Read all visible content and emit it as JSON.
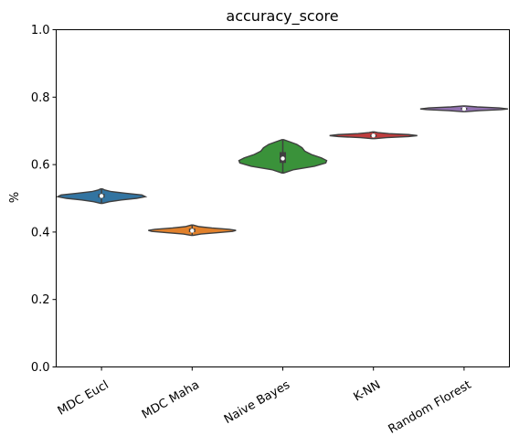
{
  "chart_data": {
    "type": "violin",
    "title": "accuracy_score",
    "xlabel": "",
    "ylabel": "%",
    "ylim": [
      0.0,
      1.0
    ],
    "yticks": [
      "0.0",
      "0.2",
      "0.4",
      "0.6",
      "0.8",
      "1.0"
    ],
    "grid": false,
    "legend": "none",
    "categories": [
      "MDC Eucl",
      "MDC Maha",
      "Naive Bayes",
      "K-NN",
      "Random Florest"
    ],
    "series": [
      {
        "category": "MDC Eucl",
        "color": "#3274a1",
        "min": 0.485,
        "q1": 0.502,
        "median": 0.507,
        "q3": 0.513,
        "max": 0.528,
        "density": [
          [
            0.485,
            0.02
          ],
          [
            0.49,
            0.18
          ],
          [
            0.495,
            0.45
          ],
          [
            0.5,
            0.8
          ],
          [
            0.505,
            1.0
          ],
          [
            0.51,
            0.92
          ],
          [
            0.515,
            0.55
          ],
          [
            0.52,
            0.22
          ],
          [
            0.525,
            0.07
          ],
          [
            0.528,
            0.02
          ]
        ]
      },
      {
        "category": "MDC Maha",
        "color": "#e1812c",
        "min": 0.39,
        "q1": 0.4,
        "median": 0.404,
        "q3": 0.41,
        "max": 0.421,
        "density": [
          [
            0.39,
            0.02
          ],
          [
            0.394,
            0.2
          ],
          [
            0.398,
            0.55
          ],
          [
            0.402,
            0.92
          ],
          [
            0.405,
            1.0
          ],
          [
            0.408,
            0.85
          ],
          [
            0.412,
            0.45
          ],
          [
            0.416,
            0.16
          ],
          [
            0.421,
            0.02
          ]
        ]
      },
      {
        "category": "Naive Bayes",
        "color": "#3a923a",
        "min": 0.575,
        "q1": 0.605,
        "median": 0.618,
        "q3": 0.637,
        "max": 0.674,
        "density": [
          [
            0.575,
            0.02
          ],
          [
            0.585,
            0.25
          ],
          [
            0.595,
            0.72
          ],
          [
            0.605,
            0.98
          ],
          [
            0.612,
            1.0
          ],
          [
            0.62,
            0.88
          ],
          [
            0.63,
            0.65
          ],
          [
            0.64,
            0.5
          ],
          [
            0.65,
            0.44
          ],
          [
            0.66,
            0.32
          ],
          [
            0.668,
            0.15
          ],
          [
            0.674,
            0.02
          ]
        ]
      },
      {
        "category": "K-NN",
        "color": "#c03d3e",
        "min": 0.677,
        "q1": 0.682,
        "median": 0.686,
        "q3": 0.689,
        "max": 0.697,
        "density": [
          [
            0.677,
            0.03
          ],
          [
            0.68,
            0.3
          ],
          [
            0.683,
            0.8
          ],
          [
            0.686,
            1.0
          ],
          [
            0.689,
            0.8
          ],
          [
            0.692,
            0.35
          ],
          [
            0.695,
            0.1
          ],
          [
            0.697,
            0.02
          ]
        ]
      },
      {
        "category": "Random Florest",
        "color": "#9372b2",
        "min": 0.757,
        "q1": 0.763,
        "median": 0.765,
        "q3": 0.768,
        "max": 0.774,
        "density": [
          [
            0.757,
            0.03
          ],
          [
            0.76,
            0.35
          ],
          [
            0.763,
            0.85
          ],
          [
            0.765,
            1.0
          ],
          [
            0.768,
            0.8
          ],
          [
            0.771,
            0.3
          ],
          [
            0.774,
            0.03
          ]
        ]
      }
    ]
  }
}
